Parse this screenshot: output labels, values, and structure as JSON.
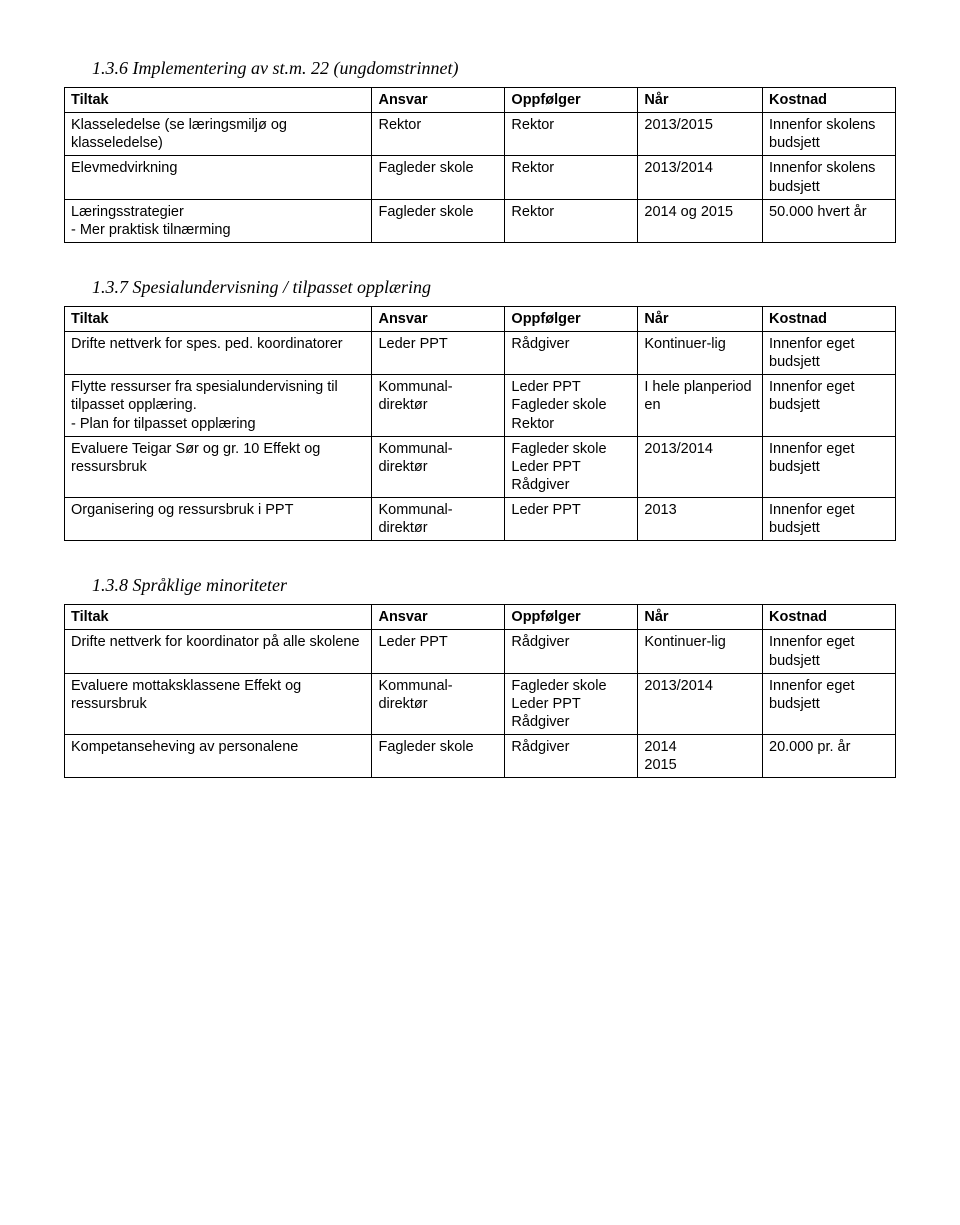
{
  "sections": [
    {
      "heading": "1.3.6   Implementering av st.m. 22 (ungdomstrinnet)",
      "headers": [
        "Tiltak",
        "Ansvar",
        "Oppfølger",
        "Når",
        "Kostnad"
      ],
      "rows": [
        [
          "Klasseledelse (se læringsmiljø og klasseledelse)",
          "Rektor",
          "Rektor",
          "2013/2015",
          "Innenfor skolens budsjett"
        ],
        [
          "Elevmedvirkning",
          "Fagleder skole",
          "Rektor",
          "2013/2014",
          "Innenfor skolens budsjett"
        ],
        [
          "Læringsstrategier\n- Mer praktisk tilnærming",
          "Fagleder skole",
          "Rektor",
          "2014 og 2015",
          "50.000 hvert år"
        ]
      ]
    },
    {
      "heading": "1.3.7   Spesialundervisning / tilpasset opplæring",
      "headers": [
        "Tiltak",
        "Ansvar",
        "Oppfølger",
        "Når",
        "Kostnad"
      ],
      "rows": [
        [
          "Drifte nettverk for spes. ped. koordinatorer",
          "Leder PPT",
          "Rådgiver",
          "Kontinuer-lig",
          "Innenfor eget budsjett"
        ],
        [
          "Flytte ressurser fra spesialundervisning til tilpasset opplæring.\n    -   Plan for tilpasset opplæring",
          "Kommunal-direktør",
          "Leder PPT\nFagleder skole\nRektor",
          "I hele planperiod\nen",
          " Innenfor eget budsjett"
        ],
        [
          "Evaluere Teigar Sør og gr. 10 Effekt og ressursbruk",
          "Kommunal-direktør",
          "Fagleder skole\nLeder PPT\nRådgiver",
          "2013/2014",
          "Innenfor eget budsjett"
        ],
        [
          "Organisering og ressursbruk i PPT",
          "Kommunal-direktør",
          "Leder PPT",
          "2013",
          "Innenfor eget budsjett"
        ]
      ]
    },
    {
      "heading": "1.3.8   Språklige minoriteter",
      "headers": [
        "Tiltak",
        "Ansvar",
        "Oppfølger",
        "Når",
        "Kostnad"
      ],
      "rows": [
        [
          "Drifte nettverk for koordinator på alle skolene",
          "Leder PPT",
          "Rådgiver",
          "Kontinuer-lig",
          "Innenfor eget budsjett"
        ],
        [
          "Evaluere mottaksklassene Effekt og ressursbruk",
          "Kommunal-direktør",
          "Fagleder skole\nLeder PPT\nRådgiver",
          "2013/2014",
          "Innenfor eget budsjett"
        ],
        [
          "Kompetanseheving av personalene",
          "Fagleder skole",
          "Rådgiver",
          "2014\n2015",
          "20.000 pr. år"
        ]
      ]
    }
  ]
}
